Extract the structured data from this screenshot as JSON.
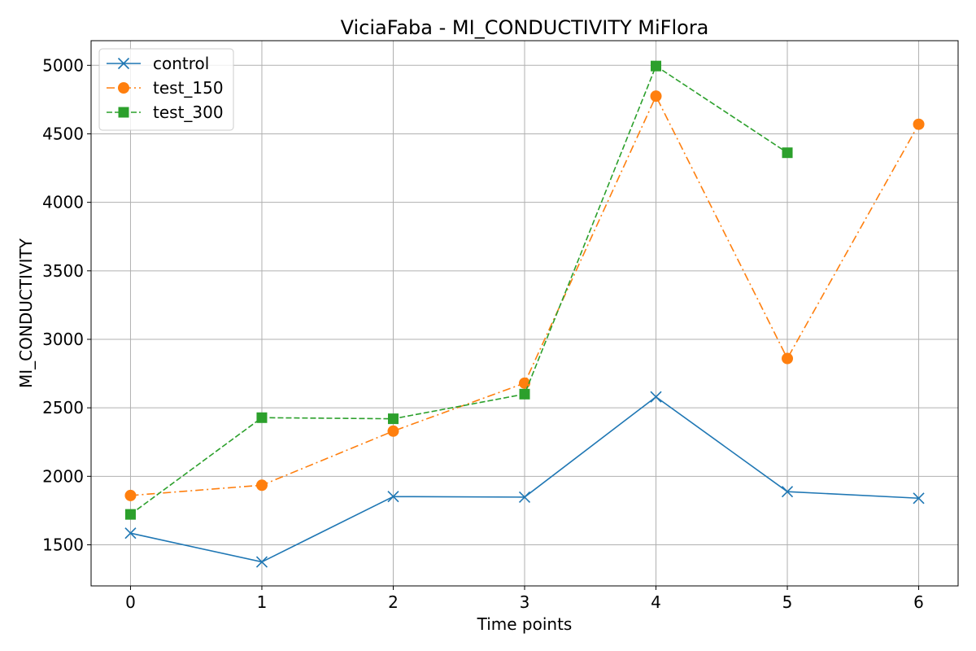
{
  "chart_data": {
    "type": "line",
    "title": "ViciaFaba - MI_CONDUCTIVITY MiFlora",
    "xlabel": "Time points",
    "ylabel": "MI_CONDUCTIVITY",
    "xlim": [
      -0.3,
      6.3
    ],
    "ylim": [
      1200,
      5180
    ],
    "xticks": [
      0,
      1,
      2,
      3,
      4,
      5,
      6
    ],
    "yticks": [
      1500,
      2000,
      2500,
      3000,
      3500,
      4000,
      4500,
      5000
    ],
    "grid": true,
    "legend_position": "top-left",
    "series": [
      {
        "name": "control",
        "color": "#1f77b4",
        "marker": "x",
        "linestyle": "solid",
        "x": [
          0,
          1,
          2,
          3,
          4,
          5,
          6
        ],
        "y": [
          1585,
          1375,
          1852,
          1848,
          2580,
          1888,
          1840
        ]
      },
      {
        "name": "test_150",
        "color": "#ff7f0e",
        "marker": "circle",
        "linestyle": "dashdot",
        "x": [
          0,
          1,
          2,
          3,
          4,
          5,
          6
        ],
        "y": [
          1860,
          1935,
          2330,
          2680,
          4775,
          2860,
          4570
        ]
      },
      {
        "name": "test_300",
        "color": "#2ca02c",
        "marker": "square",
        "linestyle": "dashed",
        "x": [
          0,
          1,
          2,
          3,
          4,
          5
        ],
        "y": [
          1722,
          2428,
          2420,
          2600,
          4995,
          4362
        ]
      }
    ]
  }
}
